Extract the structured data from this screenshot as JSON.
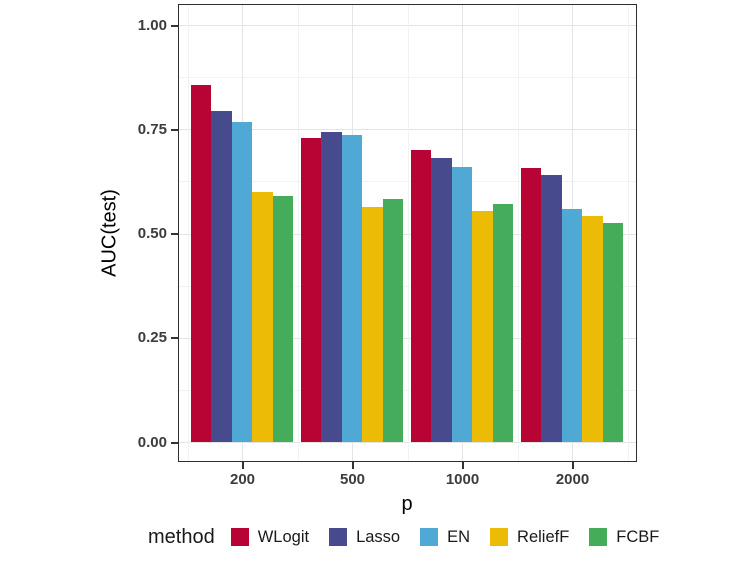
{
  "chart_data": {
    "type": "bar",
    "title": "",
    "xlabel": "p",
    "ylabel": "AUC(test)",
    "categories": [
      "200",
      "500",
      "1000",
      "2000"
    ],
    "series": [
      {
        "name": "WLogit",
        "color": "#b80335",
        "values": [
          0.856,
          0.73,
          0.7,
          0.657
        ]
      },
      {
        "name": "Lasso",
        "color": "#474b8e",
        "values": [
          0.793,
          0.744,
          0.68,
          0.64
        ]
      },
      {
        "name": "EN",
        "color": "#50a9d4",
        "values": [
          0.768,
          0.736,
          0.66,
          0.559
        ]
      },
      {
        "name": "ReliefF",
        "color": "#ebbb05",
        "values": [
          0.6,
          0.564,
          0.554,
          0.542
        ]
      },
      {
        "name": "FCBF",
        "color": "#45ac5c",
        "values": [
          0.59,
          0.583,
          0.571,
          0.525
        ]
      }
    ],
    "ylim": [
      0,
      1
    ],
    "y_ticks": [
      0.0,
      0.25,
      0.5,
      0.75,
      1.0
    ],
    "y_tick_labels": [
      "0.00",
      "0.25",
      "0.50",
      "0.75",
      "1.00"
    ],
    "y_minor_ticks": [
      0.125,
      0.375,
      0.625,
      0.875
    ],
    "legend_title": "method",
    "legend_position": "bottom",
    "grid": true,
    "panel_border_color": "#2e2e2e",
    "grid_major_color": "#e4e4e4",
    "grid_minor_color": "#f2f2f2"
  }
}
